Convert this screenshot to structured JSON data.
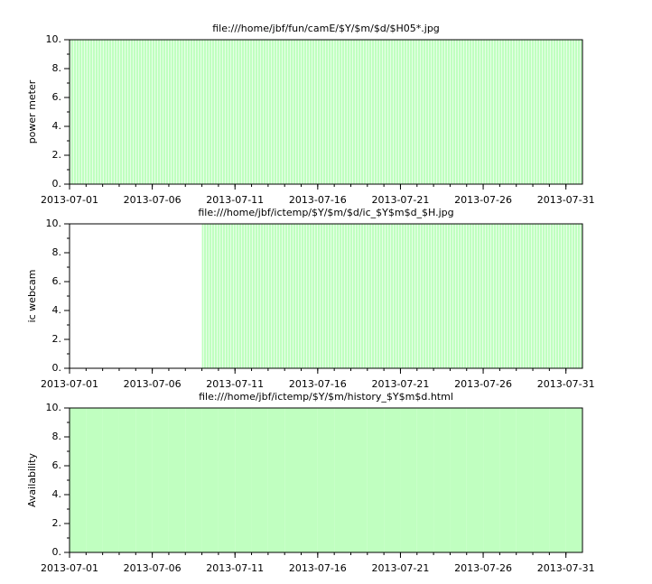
{
  "chart_data": [
    {
      "type": "bar",
      "title": "file:///home/jbf/fun/camE/$Y/$m/$d/$H05*.jpg",
      "y_label": "power meter",
      "color": "#c0ffc0",
      "striped": true,
      "x": [
        "2013-07-01",
        "2013-07-02",
        "2013-07-03",
        "2013-07-04",
        "2013-07-05",
        "2013-07-06",
        "2013-07-07",
        "2013-07-08",
        "2013-07-09",
        "2013-07-10",
        "2013-07-11",
        "2013-07-12",
        "2013-07-13",
        "2013-07-14",
        "2013-07-15",
        "2013-07-16",
        "2013-07-17",
        "2013-07-18",
        "2013-07-19",
        "2013-07-20",
        "2013-07-21",
        "2013-07-22",
        "2013-07-23",
        "2013-07-24",
        "2013-07-25",
        "2013-07-26",
        "2013-07-27",
        "2013-07-28",
        "2013-07-29",
        "2013-07-30",
        "2013-07-31"
      ],
      "values": [
        10,
        10,
        10,
        10,
        10,
        10,
        10,
        10,
        10,
        10,
        10,
        10,
        10,
        10,
        10,
        10,
        10,
        10,
        10,
        10,
        10,
        10,
        10,
        10,
        10,
        10,
        10,
        10,
        10,
        10,
        10
      ],
      "xlim": [
        "2013-07-01",
        "2013-08-01"
      ],
      "xticks": [
        "2013-07-01",
        "2013-07-06",
        "2013-07-11",
        "2013-07-16",
        "2013-07-21",
        "2013-07-26",
        "2013-07-31"
      ],
      "ylim": [
        0,
        10
      ],
      "yticks": [
        {
          "value": 0,
          "label": "0."
        },
        {
          "value": 2,
          "label": "2."
        },
        {
          "value": 4,
          "label": "4."
        },
        {
          "value": 6,
          "label": "6."
        },
        {
          "value": 8,
          "label": "8."
        },
        {
          "value": 10,
          "label": "10."
        }
      ],
      "yminor_ticks": [
        1,
        3,
        5,
        7,
        9
      ]
    },
    {
      "type": "bar",
      "title": "file:///home/jbf/ictemp/$Y/$m/$d/ic_$Y$m$d_$H.jpg",
      "y_label": "ic webcam",
      "color": "#c0ffc0",
      "striped": true,
      "x": [
        "2013-07-01",
        "2013-07-02",
        "2013-07-03",
        "2013-07-04",
        "2013-07-05",
        "2013-07-06",
        "2013-07-07",
        "2013-07-08",
        "2013-07-09",
        "2013-07-10",
        "2013-07-11",
        "2013-07-12",
        "2013-07-13",
        "2013-07-14",
        "2013-07-15",
        "2013-07-16",
        "2013-07-17",
        "2013-07-18",
        "2013-07-19",
        "2013-07-20",
        "2013-07-21",
        "2013-07-22",
        "2013-07-23",
        "2013-07-24",
        "2013-07-25",
        "2013-07-26",
        "2013-07-27",
        "2013-07-28",
        "2013-07-29",
        "2013-07-30",
        "2013-07-31"
      ],
      "values": [
        null,
        null,
        null,
        null,
        null,
        null,
        null,
        null,
        10,
        10,
        10,
        10,
        10,
        10,
        10,
        10,
        10,
        10,
        10,
        10,
        10,
        10,
        10,
        10,
        10,
        10,
        10,
        10,
        10,
        10,
        10
      ],
      "xlim": [
        "2013-07-01",
        "2013-08-01"
      ],
      "xticks": [
        "2013-07-01",
        "2013-07-06",
        "2013-07-11",
        "2013-07-16",
        "2013-07-21",
        "2013-07-26",
        "2013-07-31"
      ],
      "ylim": [
        0,
        10
      ],
      "yticks": [
        {
          "value": 0,
          "label": "0."
        },
        {
          "value": 2,
          "label": "2."
        },
        {
          "value": 4,
          "label": "4."
        },
        {
          "value": 6,
          "label": "6."
        },
        {
          "value": 8,
          "label": "8."
        },
        {
          "value": 10,
          "label": "10."
        }
      ],
      "yminor_ticks": [
        1,
        3,
        5,
        7,
        9
      ]
    },
    {
      "type": "bar",
      "title": "file:///home/jbf/ictemp/$Y/$m/history_$Y$m$d.html",
      "y_label": "Availability",
      "color": "#c0ffc0",
      "striped": false,
      "x": [
        "2013-07-01",
        "2013-07-02",
        "2013-07-03",
        "2013-07-04",
        "2013-07-05",
        "2013-07-06",
        "2013-07-07",
        "2013-07-08",
        "2013-07-09",
        "2013-07-10",
        "2013-07-11",
        "2013-07-12",
        "2013-07-13",
        "2013-07-14",
        "2013-07-15",
        "2013-07-16",
        "2013-07-17",
        "2013-07-18",
        "2013-07-19",
        "2013-07-20",
        "2013-07-21",
        "2013-07-22",
        "2013-07-23",
        "2013-07-24",
        "2013-07-25",
        "2013-07-26",
        "2013-07-27",
        "2013-07-28",
        "2013-07-29",
        "2013-07-30",
        "2013-07-31"
      ],
      "values": [
        10,
        10,
        10,
        10,
        10,
        10,
        10,
        10,
        10,
        10,
        10,
        10,
        10,
        10,
        10,
        10,
        10,
        10,
        10,
        10,
        10,
        10,
        10,
        10,
        10,
        10,
        10,
        10,
        10,
        10,
        10
      ],
      "xlim": [
        "2013-07-01",
        "2013-08-01"
      ],
      "xticks": [
        "2013-07-01",
        "2013-07-06",
        "2013-07-11",
        "2013-07-16",
        "2013-07-21",
        "2013-07-26",
        "2013-07-31"
      ],
      "ylim": [
        0,
        10
      ],
      "yticks": [
        {
          "value": 0,
          "label": "0."
        },
        {
          "value": 2,
          "label": "2."
        },
        {
          "value": 4,
          "label": "4."
        },
        {
          "value": 6,
          "label": "6."
        },
        {
          "value": 8,
          "label": "8."
        },
        {
          "value": 10,
          "label": "10."
        }
      ],
      "yminor_ticks": [
        1,
        3,
        5,
        7,
        9
      ]
    }
  ]
}
